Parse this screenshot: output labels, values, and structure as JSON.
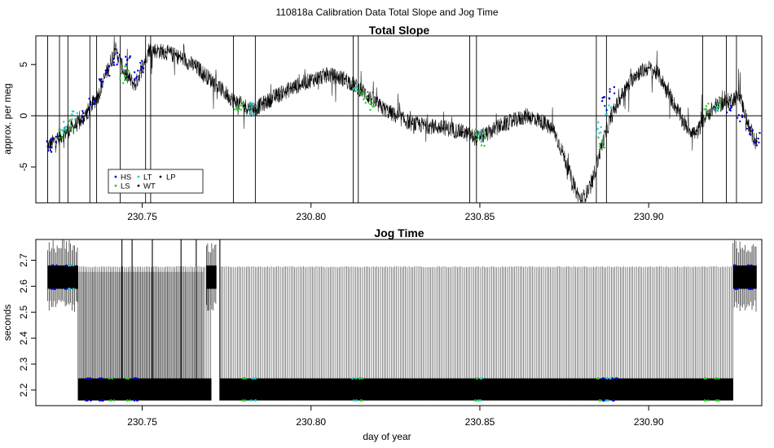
{
  "figure_title": "110818a   Calibration Data Total Slope and Jog Time",
  "colors": {
    "HS": "#0000cc",
    "LS": "#22cc22",
    "LT": "#22cccc",
    "WT": "#000000",
    "LP": "#000000",
    "reference_line": "#000000",
    "frame": "#000000"
  },
  "chart_data": [
    {
      "type": "scatter",
      "title": "Total Slope",
      "xlabel": "",
      "ylabel": "approx. per meg",
      "xlim": [
        230.7185,
        230.9335
      ],
      "ylim": [
        -8.5,
        7.8
      ],
      "x_ticks": [
        230.75,
        230.8,
        230.85,
        230.9
      ],
      "x_tick_labels": [
        "230.75",
        "230.80",
        "230.85",
        "230.90"
      ],
      "y_ticks": [
        -5,
        0,
        5
      ],
      "y_tick_labels": [
        "-5",
        "0",
        "5"
      ],
      "reference_line_y": 0,
      "x_range_data": [
        230.722,
        230.932
      ],
      "legend": {
        "placement": "bottom-left",
        "entries": [
          "HS",
          "LT",
          "LP",
          "LS",
          "WT"
        ]
      },
      "series": [
        {
          "name": "WT",
          "values": [
            [
              230.722,
              -3.0
            ],
            [
              230.727,
              -1.7
            ],
            [
              230.732,
              -0.5
            ],
            [
              230.737,
              2.0
            ],
            [
              230.742,
              6.5
            ],
            [
              230.745,
              4.0
            ],
            [
              230.748,
              3.0
            ],
            [
              230.752,
              6.5
            ],
            [
              230.757,
              6.2
            ],
            [
              230.762,
              5.6
            ],
            [
              230.767,
              4.5
            ],
            [
              230.772,
              3.0
            ],
            [
              230.777,
              1.5
            ],
            [
              230.78,
              1.0
            ],
            [
              230.783,
              0.6
            ],
            [
              230.786,
              1.2
            ],
            [
              230.79,
              2.0
            ],
            [
              230.795,
              2.8
            ],
            [
              230.8,
              3.5
            ],
            [
              230.805,
              4.0
            ],
            [
              230.81,
              3.6
            ],
            [
              230.815,
              2.5
            ],
            [
              230.82,
              1.0
            ],
            [
              230.825,
              0.0
            ],
            [
              230.83,
              -0.8
            ],
            [
              230.835,
              -1.0
            ],
            [
              230.84,
              -1.2
            ],
            [
              230.845,
              -1.6
            ],
            [
              230.849,
              -2.2
            ],
            [
              230.852,
              -1.8
            ],
            [
              230.856,
              -1.0
            ],
            [
              230.86,
              -0.5
            ],
            [
              230.864,
              0.0
            ],
            [
              230.868,
              -0.5
            ],
            [
              230.872,
              -1.5
            ],
            [
              230.875,
              -4.0
            ],
            [
              230.878,
              -7.0
            ],
            [
              230.88,
              -8.3
            ],
            [
              230.883,
              -6.8
            ],
            [
              230.886,
              -3.0
            ],
            [
              230.889,
              0.0
            ],
            [
              230.892,
              2.0
            ],
            [
              230.896,
              4.0
            ],
            [
              230.9,
              4.7
            ],
            [
              230.903,
              4.0
            ],
            [
              230.907,
              1.5
            ],
            [
              230.911,
              -1.0
            ],
            [
              230.914,
              -1.8
            ],
            [
              230.917,
              0.0
            ],
            [
              230.92,
              1.0
            ],
            [
              230.924,
              1.5
            ],
            [
              230.927,
              2.0
            ],
            [
              230.93,
              -1.5
            ],
            [
              230.932,
              -2.5
            ]
          ]
        },
        {
          "name": "HS",
          "values": [
            [
              230.7225,
              -3.1
            ],
            [
              230.7238,
              -2.5
            ],
            [
              230.733,
              0.0
            ],
            [
              230.735,
              1.2
            ],
            [
              230.738,
              3.0
            ],
            [
              230.74,
              4.2
            ],
            [
              230.742,
              5.5
            ],
            [
              230.746,
              5.2
            ],
            [
              230.748,
              4.0
            ],
            [
              230.75,
              4.8
            ],
            [
              230.887,
              1.2
            ],
            [
              230.889,
              2.2
            ],
            [
              230.924,
              0.8
            ],
            [
              230.927,
              0.0
            ],
            [
              230.93,
              -1.2
            ],
            [
              230.932,
              -2.3
            ]
          ]
        },
        {
          "name": "LS",
          "values": [
            [
              230.726,
              -1.6
            ],
            [
              230.729,
              -0.8
            ],
            [
              230.744,
              3.8
            ],
            [
              230.7455,
              4.2
            ],
            [
              230.778,
              1.2
            ],
            [
              230.78,
              0.8
            ],
            [
              230.814,
              2.6
            ],
            [
              230.816,
              1.8
            ],
            [
              230.818,
              0.8
            ],
            [
              230.849,
              -1.9
            ],
            [
              230.851,
              -2.3
            ],
            [
              230.886,
              -2.6
            ],
            [
              230.917,
              0.6
            ],
            [
              230.921,
              1.1
            ]
          ]
        },
        {
          "name": "LT",
          "values": [
            [
              230.727,
              -1.0
            ],
            [
              230.73,
              0.0
            ],
            [
              230.782,
              0.8
            ],
            [
              230.783,
              0.4
            ],
            [
              230.813,
              2.8
            ],
            [
              230.85,
              -2.1
            ],
            [
              230.885,
              -1.2
            ],
            [
              230.888,
              0.5
            ],
            [
              230.92,
              0.9
            ]
          ]
        },
        {
          "name": "LP",
          "values": []
        }
      ],
      "spike_x": [
        230.722,
        230.7255,
        230.728,
        230.7345,
        230.7365,
        230.7435,
        230.751,
        230.7525,
        230.777,
        230.7835,
        230.8125,
        230.814,
        230.847,
        230.849,
        230.8845,
        230.8875,
        230.916,
        230.923,
        230.926
      ]
    },
    {
      "type": "scatter",
      "title": "Jog Time",
      "xlabel": "day of year",
      "ylabel": "seconds",
      "xlim": [
        230.7185,
        230.9335
      ],
      "ylim": [
        2.14,
        2.78
      ],
      "x_ticks": [
        230.75,
        230.8,
        230.85,
        230.9
      ],
      "x_tick_labels": [
        "230.75",
        "230.80",
        "230.85",
        "230.90"
      ],
      "y_ticks": [
        2.2,
        2.3,
        2.4,
        2.5,
        2.6,
        2.7
      ],
      "y_tick_labels": [
        "2.2",
        "2.3",
        "2.4",
        "2.5",
        "2.6",
        "2.7"
      ],
      "jog_levels": {
        "upper_band": [
          2.59,
          2.68
        ],
        "lower_band": [
          2.16,
          2.245
        ],
        "peak": 2.675,
        "max": 2.78,
        "low_start_bottom": 2.5
      },
      "segments": {
        "high_start": [
          230.722,
          230.731
        ],
        "low_main": [
          230.731,
          230.925
        ],
        "high_end": [
          230.925,
          230.932
        ],
        "high_mid": [
          230.769,
          230.772
        ],
        "gaps": [
          [
            230.7705,
            230.773
          ]
        ]
      },
      "markers": {
        "HS_x": [
          230.724,
          230.728,
          230.734,
          230.738,
          230.748,
          230.887,
          230.89,
          230.926,
          230.93
        ],
        "LS_x": [
          230.741,
          230.746,
          230.78,
          230.815,
          230.849,
          230.885,
          230.917,
          230.92
        ],
        "LT_x": [
          230.729,
          230.783,
          230.813,
          230.85,
          230.888
        ]
      }
    }
  ]
}
